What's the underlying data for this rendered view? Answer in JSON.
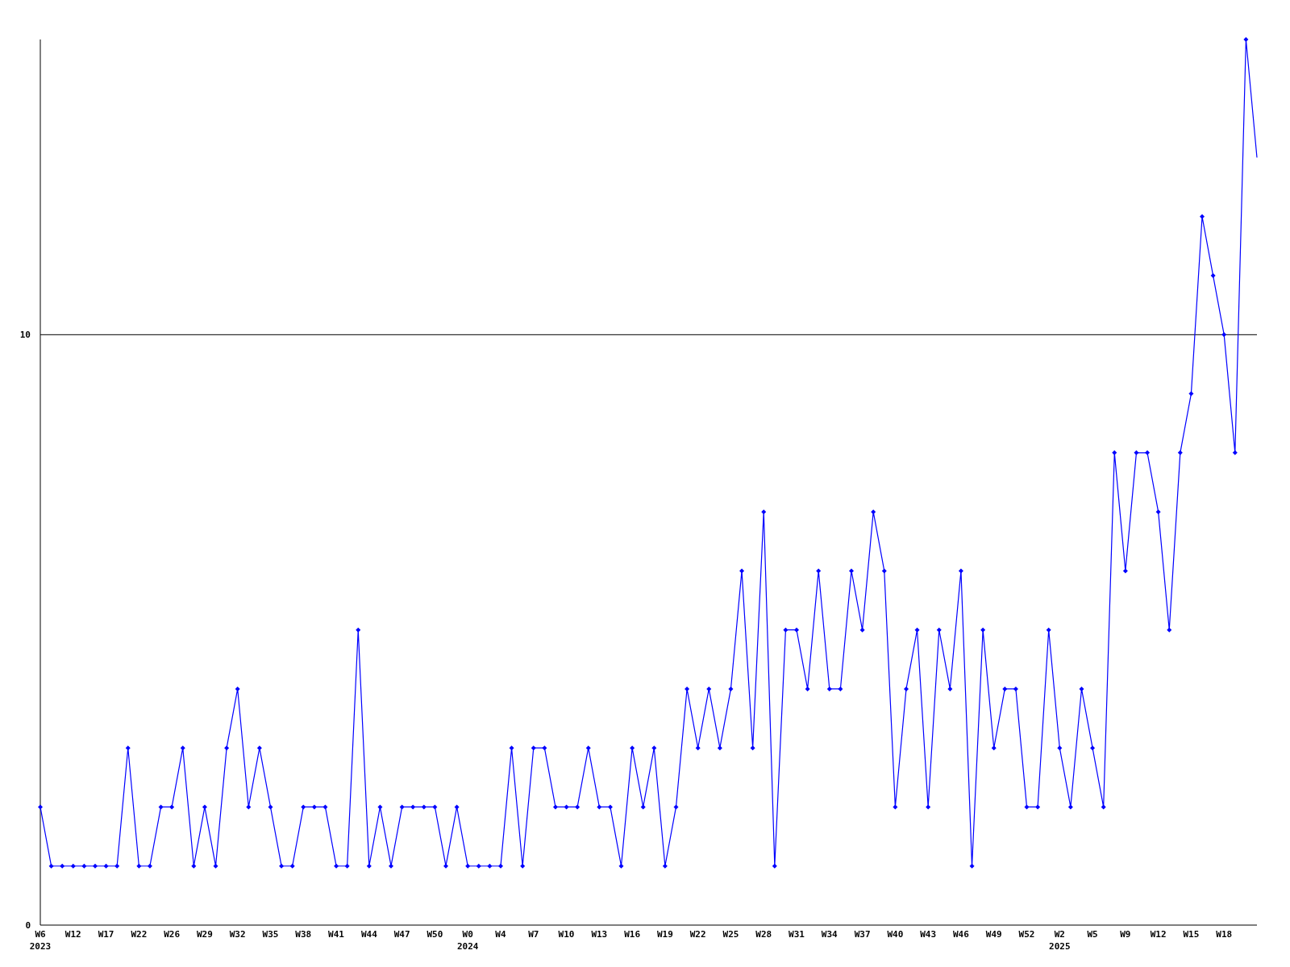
{
  "chart_data": {
    "type": "line",
    "categories": [
      "W6\n2023",
      null,
      null,
      "W12",
      null,
      null,
      "W17",
      null,
      null,
      "W22",
      null,
      null,
      "W26",
      null,
      null,
      "W29",
      null,
      null,
      "W32",
      null,
      null,
      "W35",
      null,
      null,
      "W38",
      null,
      null,
      "W41",
      null,
      null,
      "W44",
      null,
      null,
      "W47",
      null,
      null,
      "W50",
      null,
      null,
      "W0\n2024",
      null,
      null,
      "W4",
      null,
      null,
      "W7",
      null,
      null,
      "W10",
      null,
      null,
      "W13",
      null,
      null,
      "W16",
      null,
      null,
      "W19",
      null,
      null,
      "W22",
      null,
      null,
      "W25",
      null,
      null,
      "W28",
      null,
      null,
      "W31",
      null,
      null,
      "W34",
      null,
      null,
      "W37",
      null,
      null,
      "W40",
      null,
      null,
      "W43",
      null,
      null,
      "W46",
      null,
      null,
      "W49",
      null,
      null,
      "W52",
      null,
      null,
      "W2\n2025",
      null,
      null,
      "W5",
      null,
      null,
      "W9",
      null,
      null,
      "W12",
      null,
      null,
      "W15",
      null,
      null,
      "W18",
      null,
      null,
      null
    ],
    "series": [
      {
        "color": "#0000ff",
        "values": [
          2,
          1,
          1,
          1,
          1,
          1,
          1,
          1,
          3,
          1,
          1,
          2,
          2,
          3,
          1,
          2,
          1,
          3,
          4,
          2,
          3,
          2,
          1,
          1,
          2,
          2,
          2,
          1,
          1,
          5,
          1,
          2,
          1,
          2,
          2,
          2,
          2,
          1,
          2,
          1,
          1,
          1,
          1,
          3,
          1,
          3,
          3,
          2,
          2,
          2,
          3,
          2,
          2,
          1,
          3,
          2,
          3,
          1,
          2,
          4,
          3,
          4,
          3,
          4,
          6,
          3,
          7,
          1,
          5,
          5,
          4,
          6,
          4,
          4,
          6,
          5,
          7,
          6,
          2,
          4,
          5,
          2,
          5,
          4,
          6,
          1,
          5,
          3,
          4,
          4,
          2,
          2,
          5,
          3,
          2,
          4,
          3,
          2,
          8,
          6,
          8,
          8,
          7,
          5,
          8,
          9,
          12,
          11,
          10,
          8,
          15,
          13
        ]
      }
    ],
    "ylim": [
      0,
      15
    ],
    "yticks": [
      0,
      10
    ],
    "grid": "y",
    "marker": "diamond",
    "line_style": "solid"
  }
}
